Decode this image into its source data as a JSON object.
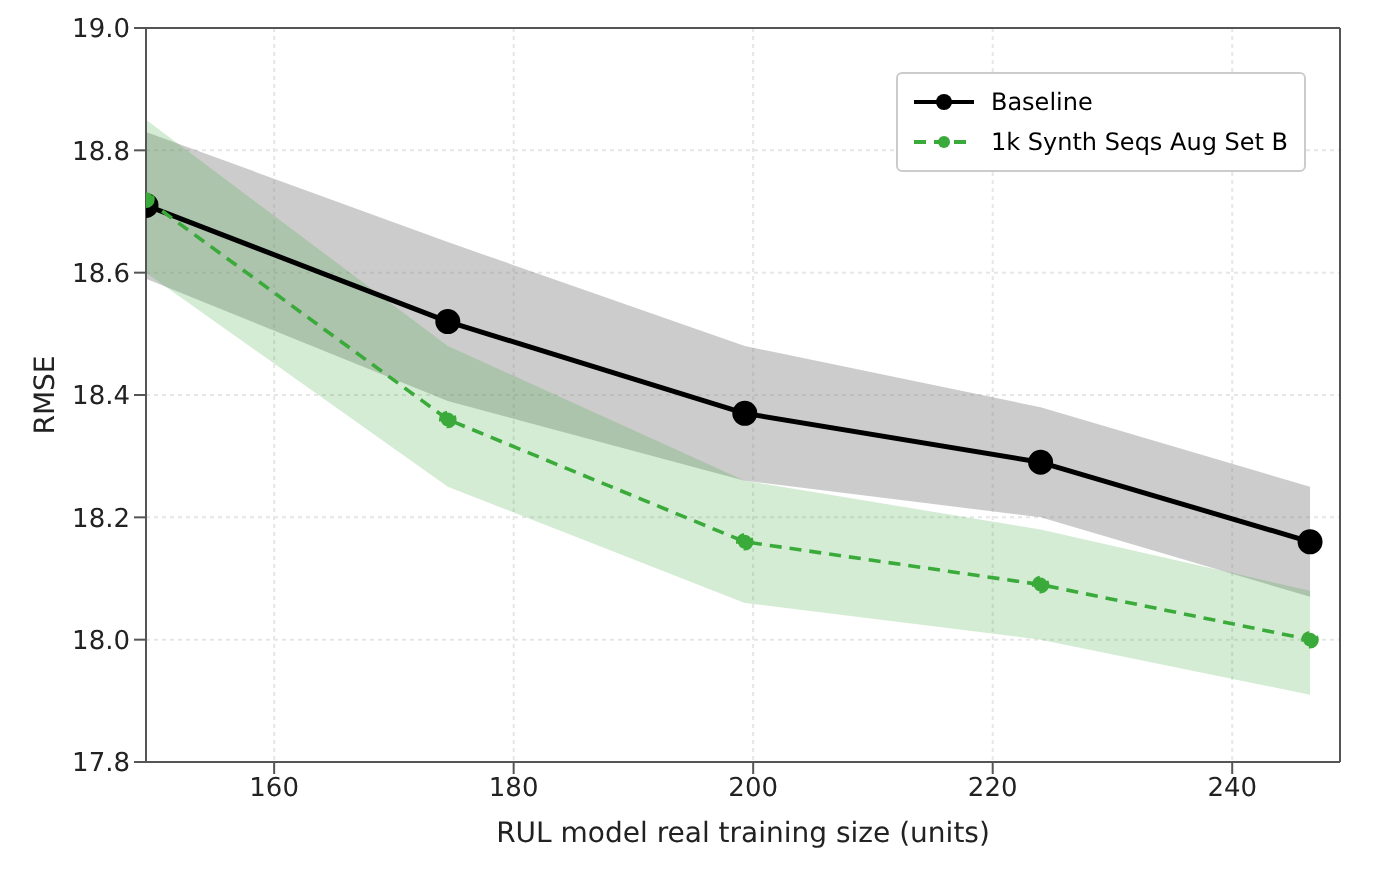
{
  "chart_data": {
    "type": "line",
    "xlabel": "RUL model real training size (units)",
    "ylabel": "RMSE",
    "x": [
      149.3,
      174.5,
      199.3,
      224,
      246.5
    ],
    "series": [
      {
        "name": "Baseline",
        "color": "#000000",
        "values": [
          18.71,
          18.52,
          18.37,
          18.29,
          18.16
        ],
        "lower": [
          18.59,
          18.39,
          18.26,
          18.2,
          18.07
        ],
        "upper": [
          18.83,
          18.65,
          18.48,
          18.38,
          18.25
        ],
        "line_style": "solid",
        "marker": "circle"
      },
      {
        "name": "1k Synth Seqs Aug Set B",
        "color": "#3aaa3a",
        "values": [
          18.72,
          18.36,
          18.16,
          18.09,
          18.0
        ],
        "lower": [
          18.6,
          18.25,
          18.06,
          18.0,
          17.91
        ],
        "upper": [
          18.85,
          18.48,
          18.26,
          18.18,
          18.08
        ],
        "line_style": "dashed",
        "marker": "circle"
      }
    ],
    "xlim": [
      149.3,
      249
    ],
    "xticks": [
      160,
      180,
      200,
      220,
      240
    ],
    "ylim": [
      17.8,
      19.0
    ],
    "yticks": [
      {
        "value": 17.8,
        "label": "17.8"
      },
      {
        "value": 18.0,
        "label": "18.0"
      },
      {
        "value": 18.2,
        "label": "18.2"
      },
      {
        "value": 18.4,
        "label": "18.4"
      },
      {
        "value": 18.6,
        "label": "18.6"
      },
      {
        "value": 18.8,
        "label": "18.8"
      },
      {
        "value": 19.0,
        "label": "19.0"
      }
    ],
    "grid": true,
    "legend": "top right"
  }
}
